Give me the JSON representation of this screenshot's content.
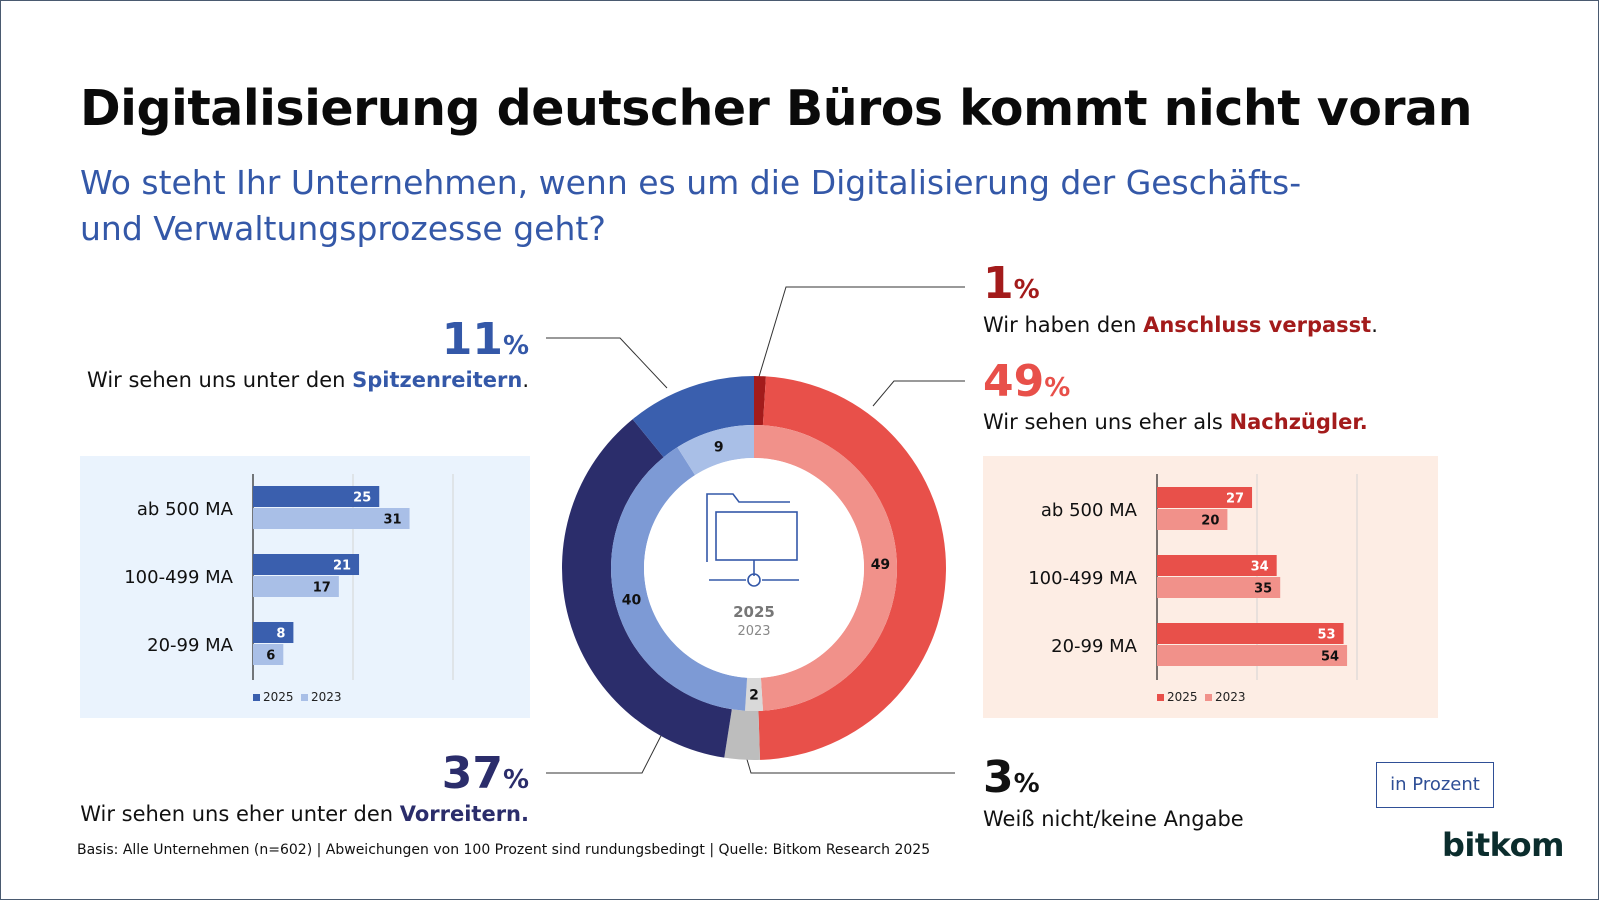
{
  "title": "Digitalisierung deutscher Büros kommt nicht voran",
  "subtitle": "Wo steht Ihr Unternehmen, wenn es um die Digitalisierung der Geschäfts- und Verwaltungsprozesse geht?",
  "callouts": {
    "spitzenreiter": {
      "value": "11",
      "unit": "%",
      "text_pre": "Wir sehen uns unter den ",
      "text_strong": "Spitzenreitern",
      "text_post": "."
    },
    "vorreiter": {
      "value": "37",
      "unit": "%",
      "text_pre": "Wir sehen uns eher unter den ",
      "text_strong": "Vorreitern.",
      "text_post": ""
    },
    "verpasst": {
      "value": "1",
      "unit": "%",
      "text_pre": "Wir haben den ",
      "text_strong": "Anschluss verpasst",
      "text_post": "."
    },
    "nachzuegler": {
      "value": "49",
      "unit": "%",
      "text_pre": "Wir sehen uns eher als ",
      "text_strong": "Nachzügler.",
      "text_post": ""
    },
    "weiss_nicht": {
      "value": "3",
      "unit": "%",
      "text_pre": "Weiß nicht/keine Angabe",
      "text_strong": "",
      "text_post": ""
    }
  },
  "colors": {
    "spitzenreiter_2025": "#3a5fae",
    "vorreiter_2025": "#2b2d6b",
    "verpasst_2025": "#a31b1b",
    "nachzuegler_2025": "#e8504a",
    "weiss_nicht_2025": "#bdbdbd",
    "spitzenreiter_2023": "#a9bfe7",
    "vorreiter_2023": "#7d9ad5",
    "nachzuegler_2023": "#f1918a",
    "weiss_nicht_2023": "#d9d9d9",
    "blue_panel_bg": "#eaf3fd",
    "red_panel_bg": "#fdede4"
  },
  "badge": "in Prozent",
  "footer": "Basis: Alle Unternehmen (n=602) | Abweichungen von 100 Prozent sind rundungsbedingt | Quelle: Bitkom Research 2025",
  "logo": "bitkom",
  "chart_data": [
    {
      "type": "pie",
      "variant": "double-donut",
      "center_icon": "folder-network-icon",
      "center_labels": [
        "2025",
        "2023"
      ],
      "categories": [
        "Anschluss verpasst",
        "Nachzügler",
        "Weiß nicht/keine Angabe",
        "Vorreiter",
        "Spitzenreiter"
      ],
      "series": [
        {
          "name": "2025",
          "values": [
            1,
            49,
            3,
            37,
            11
          ]
        },
        {
          "name": "2023",
          "values": [
            0,
            49,
            2,
            40,
            9
          ],
          "labels": [
            "",
            "49",
            "2",
            "40",
            "9"
          ]
        }
      ]
    },
    {
      "type": "bar",
      "orientation": "horizontal",
      "panel": "Spitzenreiter",
      "categories": [
        "ab 500 MA",
        "100-499 MA",
        "20-99 MA"
      ],
      "series": [
        {
          "name": "2025",
          "values": [
            25,
            21,
            8
          ]
        },
        {
          "name": "2023",
          "values": [
            31,
            17,
            6
          ]
        }
      ],
      "xlim": [
        0,
        60
      ],
      "grid": true,
      "legend": "bottom"
    },
    {
      "type": "bar",
      "orientation": "horizontal",
      "panel": "Nachzügler",
      "categories": [
        "ab 500 MA",
        "100-499 MA",
        "20-99 MA"
      ],
      "series": [
        {
          "name": "2025",
          "values": [
            27,
            34,
            53
          ]
        },
        {
          "name": "2023",
          "values": [
            20,
            35,
            54
          ]
        }
      ],
      "xlim": [
        0,
        60
      ],
      "grid": true,
      "legend": "bottom"
    }
  ]
}
